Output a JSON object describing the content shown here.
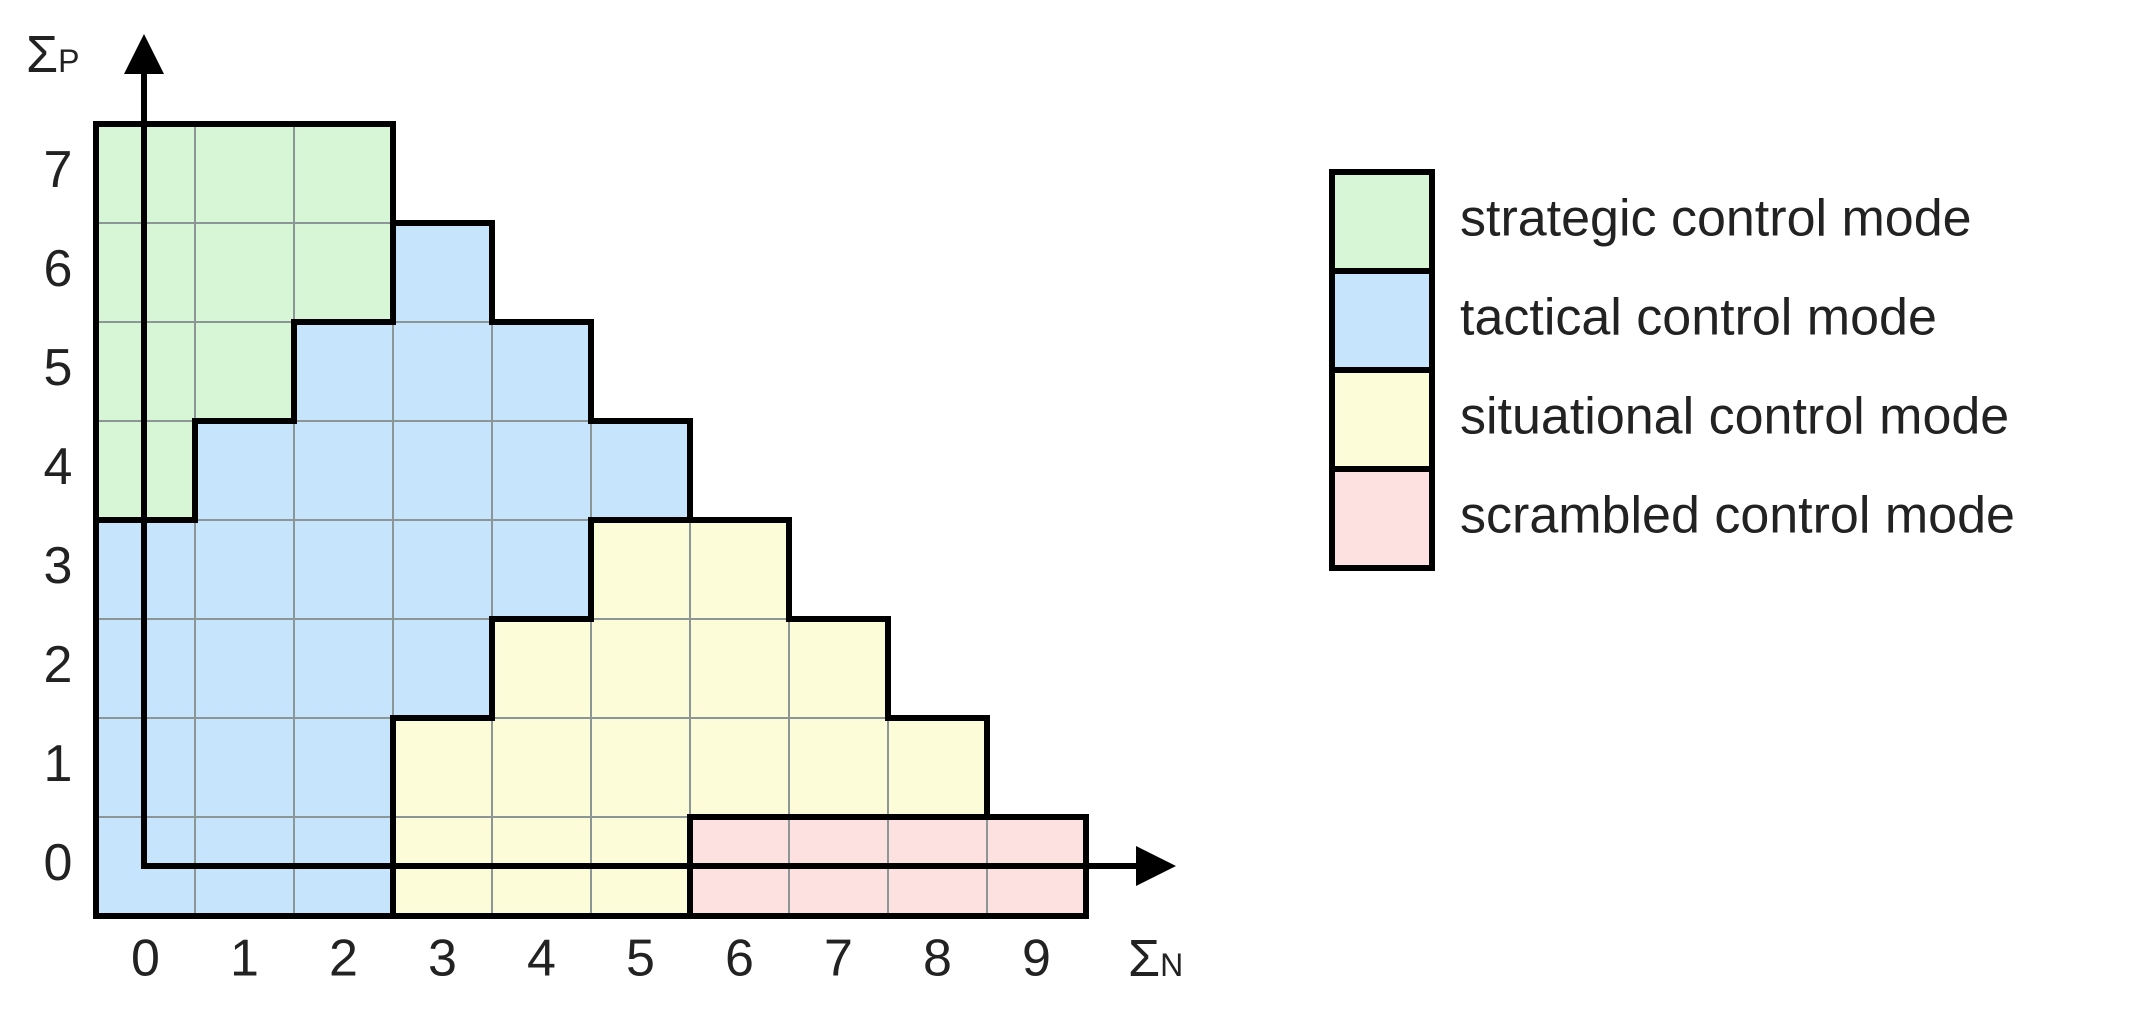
{
  "y_axis_label": {
    "symbol": "Σ",
    "sub": "P"
  },
  "x_axis_label": {
    "symbol": "Σ",
    "sub": "N"
  },
  "x_ticks": [
    0,
    1,
    2,
    3,
    4,
    5,
    6,
    7,
    8,
    9
  ],
  "y_ticks": [
    7,
    6,
    5,
    4,
    3,
    2,
    1,
    0
  ],
  "modes": [
    {
      "label": "strategic control mode",
      "color": "#d7f6d5"
    },
    {
      "label": "tactical control mode",
      "color": "#c6e4fb"
    },
    {
      "label": "situational control mode",
      "color": "#fdfcd9"
    },
    {
      "label": "scrambled control mode",
      "color": "#fde1e1"
    }
  ],
  "grid": [
    [
      0,
      0,
      0,
      null,
      null,
      null,
      null,
      null,
      null,
      null
    ],
    [
      0,
      0,
      0,
      1,
      null,
      null,
      null,
      null,
      null,
      null
    ],
    [
      0,
      0,
      1,
      1,
      1,
      null,
      null,
      null,
      null,
      null
    ],
    [
      0,
      1,
      1,
      1,
      1,
      1,
      null,
      null,
      null,
      null
    ],
    [
      1,
      1,
      1,
      1,
      1,
      2,
      2,
      null,
      null,
      null
    ],
    [
      1,
      1,
      1,
      1,
      2,
      2,
      2,
      2,
      null,
      null
    ],
    [
      1,
      1,
      1,
      2,
      2,
      2,
      2,
      2,
      2,
      null
    ],
    [
      1,
      1,
      1,
      2,
      2,
      2,
      3,
      3,
      3,
      3
    ]
  ]
}
